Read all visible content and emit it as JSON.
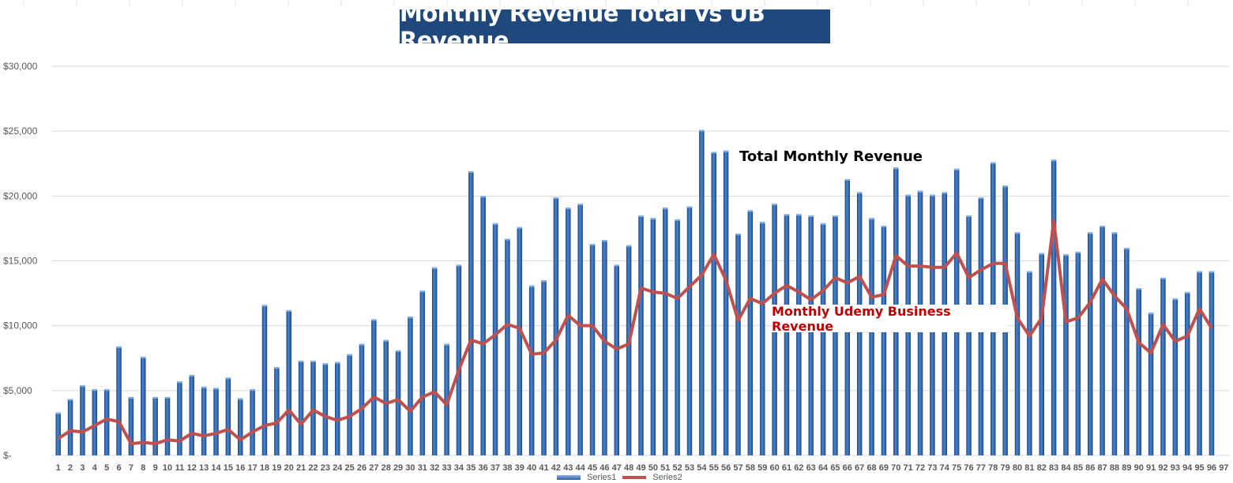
{
  "chart_data": {
    "type": "bar+line",
    "title": "Monthly Revenue Total vs UB Revenue",
    "annotations": [
      "Total Monthly Revenue",
      "Monthly Udemy Business Revenue"
    ],
    "xlabel": "",
    "ylabel": "",
    "ylim": [
      0,
      30000
    ],
    "yticks": [
      0,
      5000,
      10000,
      15000,
      20000,
      25000,
      30000
    ],
    "ytick_labels": [
      "$-",
      "$5,000",
      "$10,000",
      "$15,000",
      "$20,000",
      "$25,000",
      "$30,000"
    ],
    "grid": "horizontal",
    "legend": "bottom",
    "categories": [
      1,
      2,
      3,
      4,
      5,
      6,
      7,
      8,
      9,
      10,
      11,
      12,
      13,
      14,
      15,
      16,
      17,
      18,
      19,
      20,
      21,
      22,
      23,
      24,
      25,
      26,
      27,
      28,
      29,
      30,
      31,
      32,
      33,
      34,
      35,
      36,
      37,
      38,
      39,
      40,
      41,
      42,
      43,
      44,
      45,
      46,
      47,
      48,
      49,
      50,
      51,
      52,
      53,
      54,
      55,
      56,
      57,
      58,
      59,
      60,
      61,
      62,
      63,
      64,
      65,
      66,
      67,
      68,
      69,
      70,
      71,
      72,
      73,
      74,
      75,
      76,
      77,
      78,
      79,
      80,
      81,
      82,
      83,
      84,
      85,
      86,
      87,
      88,
      89,
      90,
      91,
      92,
      93,
      94,
      95,
      96,
      97
    ],
    "series": [
      {
        "name": "Series1",
        "type": "bar",
        "color": "#2E64A8",
        "values": [
          3300,
          4350,
          5400,
          5100,
          5100,
          8400,
          4500,
          7600,
          4500,
          4500,
          5700,
          6200,
          5300,
          5200,
          6000,
          4400,
          5100,
          11600,
          6800,
          11200,
          7300,
          7300,
          7100,
          7200,
          7800,
          8600,
          10500,
          8900,
          8100,
          10700,
          12700,
          14500,
          8600,
          14700,
          21900,
          20000,
          17900,
          16700,
          17600,
          13100,
          13500,
          19900,
          19100,
          19400,
          16300,
          16600,
          14700,
          16200,
          18500,
          18300,
          19100,
          18200,
          19200,
          25100,
          23400,
          23500,
          17100,
          18900,
          18000,
          19400,
          18600,
          18600,
          18500,
          17900,
          18500,
          21300,
          20300,
          18300,
          17700,
          22200,
          20100,
          20400,
          20100,
          20300,
          22100,
          18500,
          19900,
          22600,
          20800,
          17200,
          14200,
          15600,
          22800,
          15500,
          15700,
          17200,
          17700,
          17200,
          16000,
          12900,
          11000,
          13700,
          12100,
          12600,
          14200,
          14200,
          null
        ]
      },
      {
        "name": "Series2",
        "type": "line",
        "color": "#C0504D",
        "values": [
          1300,
          1900,
          1800,
          2300,
          2800,
          2600,
          900,
          1000,
          900,
          1200,
          1100,
          1700,
          1500,
          1700,
          2000,
          1200,
          1800,
          2300,
          2500,
          3500,
          2400,
          3500,
          3000,
          2700,
          3000,
          3600,
          4500,
          4000,
          4300,
          3400,
          4500,
          4900,
          3900,
          6600,
          8900,
          8600,
          9300,
          10100,
          9800,
          7800,
          7900,
          8900,
          10800,
          10000,
          10000,
          8800,
          8200,
          8600,
          12900,
          12600,
          12500,
          12100,
          13000,
          13900,
          15500,
          13500,
          10400,
          12100,
          11700,
          12500,
          13100,
          12600,
          12000,
          12700,
          13700,
          13300,
          13800,
          12200,
          12400,
          15400,
          14600,
          14600,
          14500,
          14500,
          15600,
          13700,
          14300,
          14800,
          14800,
          10600,
          9200,
          10600,
          18100,
          10300,
          10600,
          11800,
          13600,
          12300,
          11300,
          8700,
          7900,
          10100,
          8800,
          9200,
          11300,
          9800,
          null
        ]
      }
    ]
  }
}
